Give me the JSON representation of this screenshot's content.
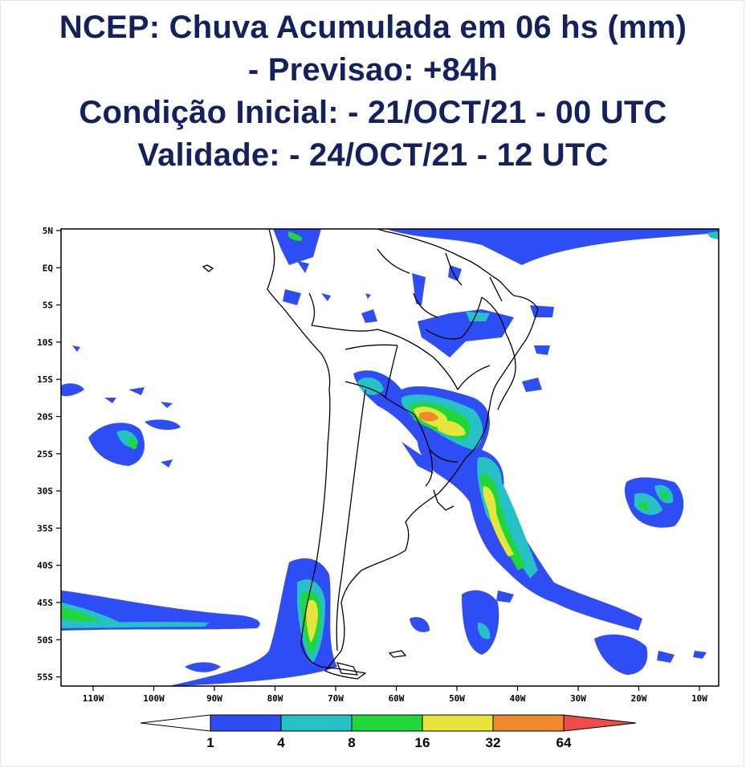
{
  "title": {
    "line1": "NCEP: Chuva Acumulada em 06 hs (mm)",
    "line2": "- Previsao: +84h",
    "line3": "Condição Inicial: - 21/OCT/21 - 00 UTC",
    "line4": "Validade: - 24/OCT/21 - 12 UTC"
  },
  "map": {
    "lat_ticks": [
      "5N",
      "EQ",
      "5S",
      "10S",
      "15S",
      "20S",
      "25S",
      "30S",
      "35S",
      "40S",
      "45S",
      "50S",
      "55S"
    ],
    "lon_ticks": [
      "110W",
      "100W",
      "90W",
      "80W",
      "70W",
      "60W",
      "50W",
      "40W",
      "30W",
      "20W",
      "10W"
    ]
  },
  "colorbar": {
    "labels": [
      "1",
      "4",
      "8",
      "16",
      "32",
      "64"
    ],
    "colors": [
      "#ffffff",
      "#2f4df5",
      "#26c0c7",
      "#20d63a",
      "#e5e53c",
      "#ee8a2c",
      "#ee4c4c"
    ]
  }
}
